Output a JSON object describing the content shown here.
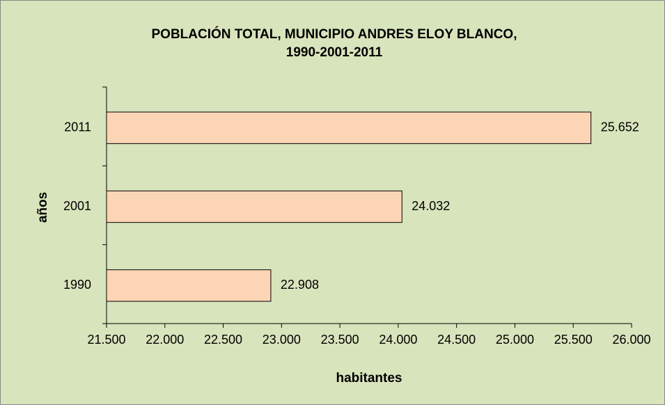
{
  "chart_data": {
    "type": "bar",
    "orientation": "horizontal",
    "title": [
      "POBLACIÓN TOTAL, MUNICIPIO ANDRES ELOY BLANCO,",
      "1990-2001-2011"
    ],
    "categories": [
      "2011",
      "2001",
      "1990"
    ],
    "values": [
      25652,
      24032,
      22908
    ],
    "value_labels": [
      "25.652",
      "24.032",
      "22.908"
    ],
    "color": "#fcd5b5",
    "xlabel": "habitantes",
    "ylabel": "años",
    "xlim": [
      21500,
      26000
    ],
    "xticks": [
      {
        "value": 21500,
        "label": "21.500"
      },
      {
        "value": 22000,
        "label": "22.000"
      },
      {
        "value": 22500,
        "label": "22.500"
      },
      {
        "value": 23000,
        "label": "23.000"
      },
      {
        "value": 23500,
        "label": "23.500"
      },
      {
        "value": 24000,
        "label": "24.000"
      },
      {
        "value": 24500,
        "label": "24.500"
      },
      {
        "value": 25000,
        "label": "25.000"
      },
      {
        "value": 25500,
        "label": "25.500"
      },
      {
        "value": 26000,
        "label": "26.000"
      }
    ],
    "grid": false
  }
}
